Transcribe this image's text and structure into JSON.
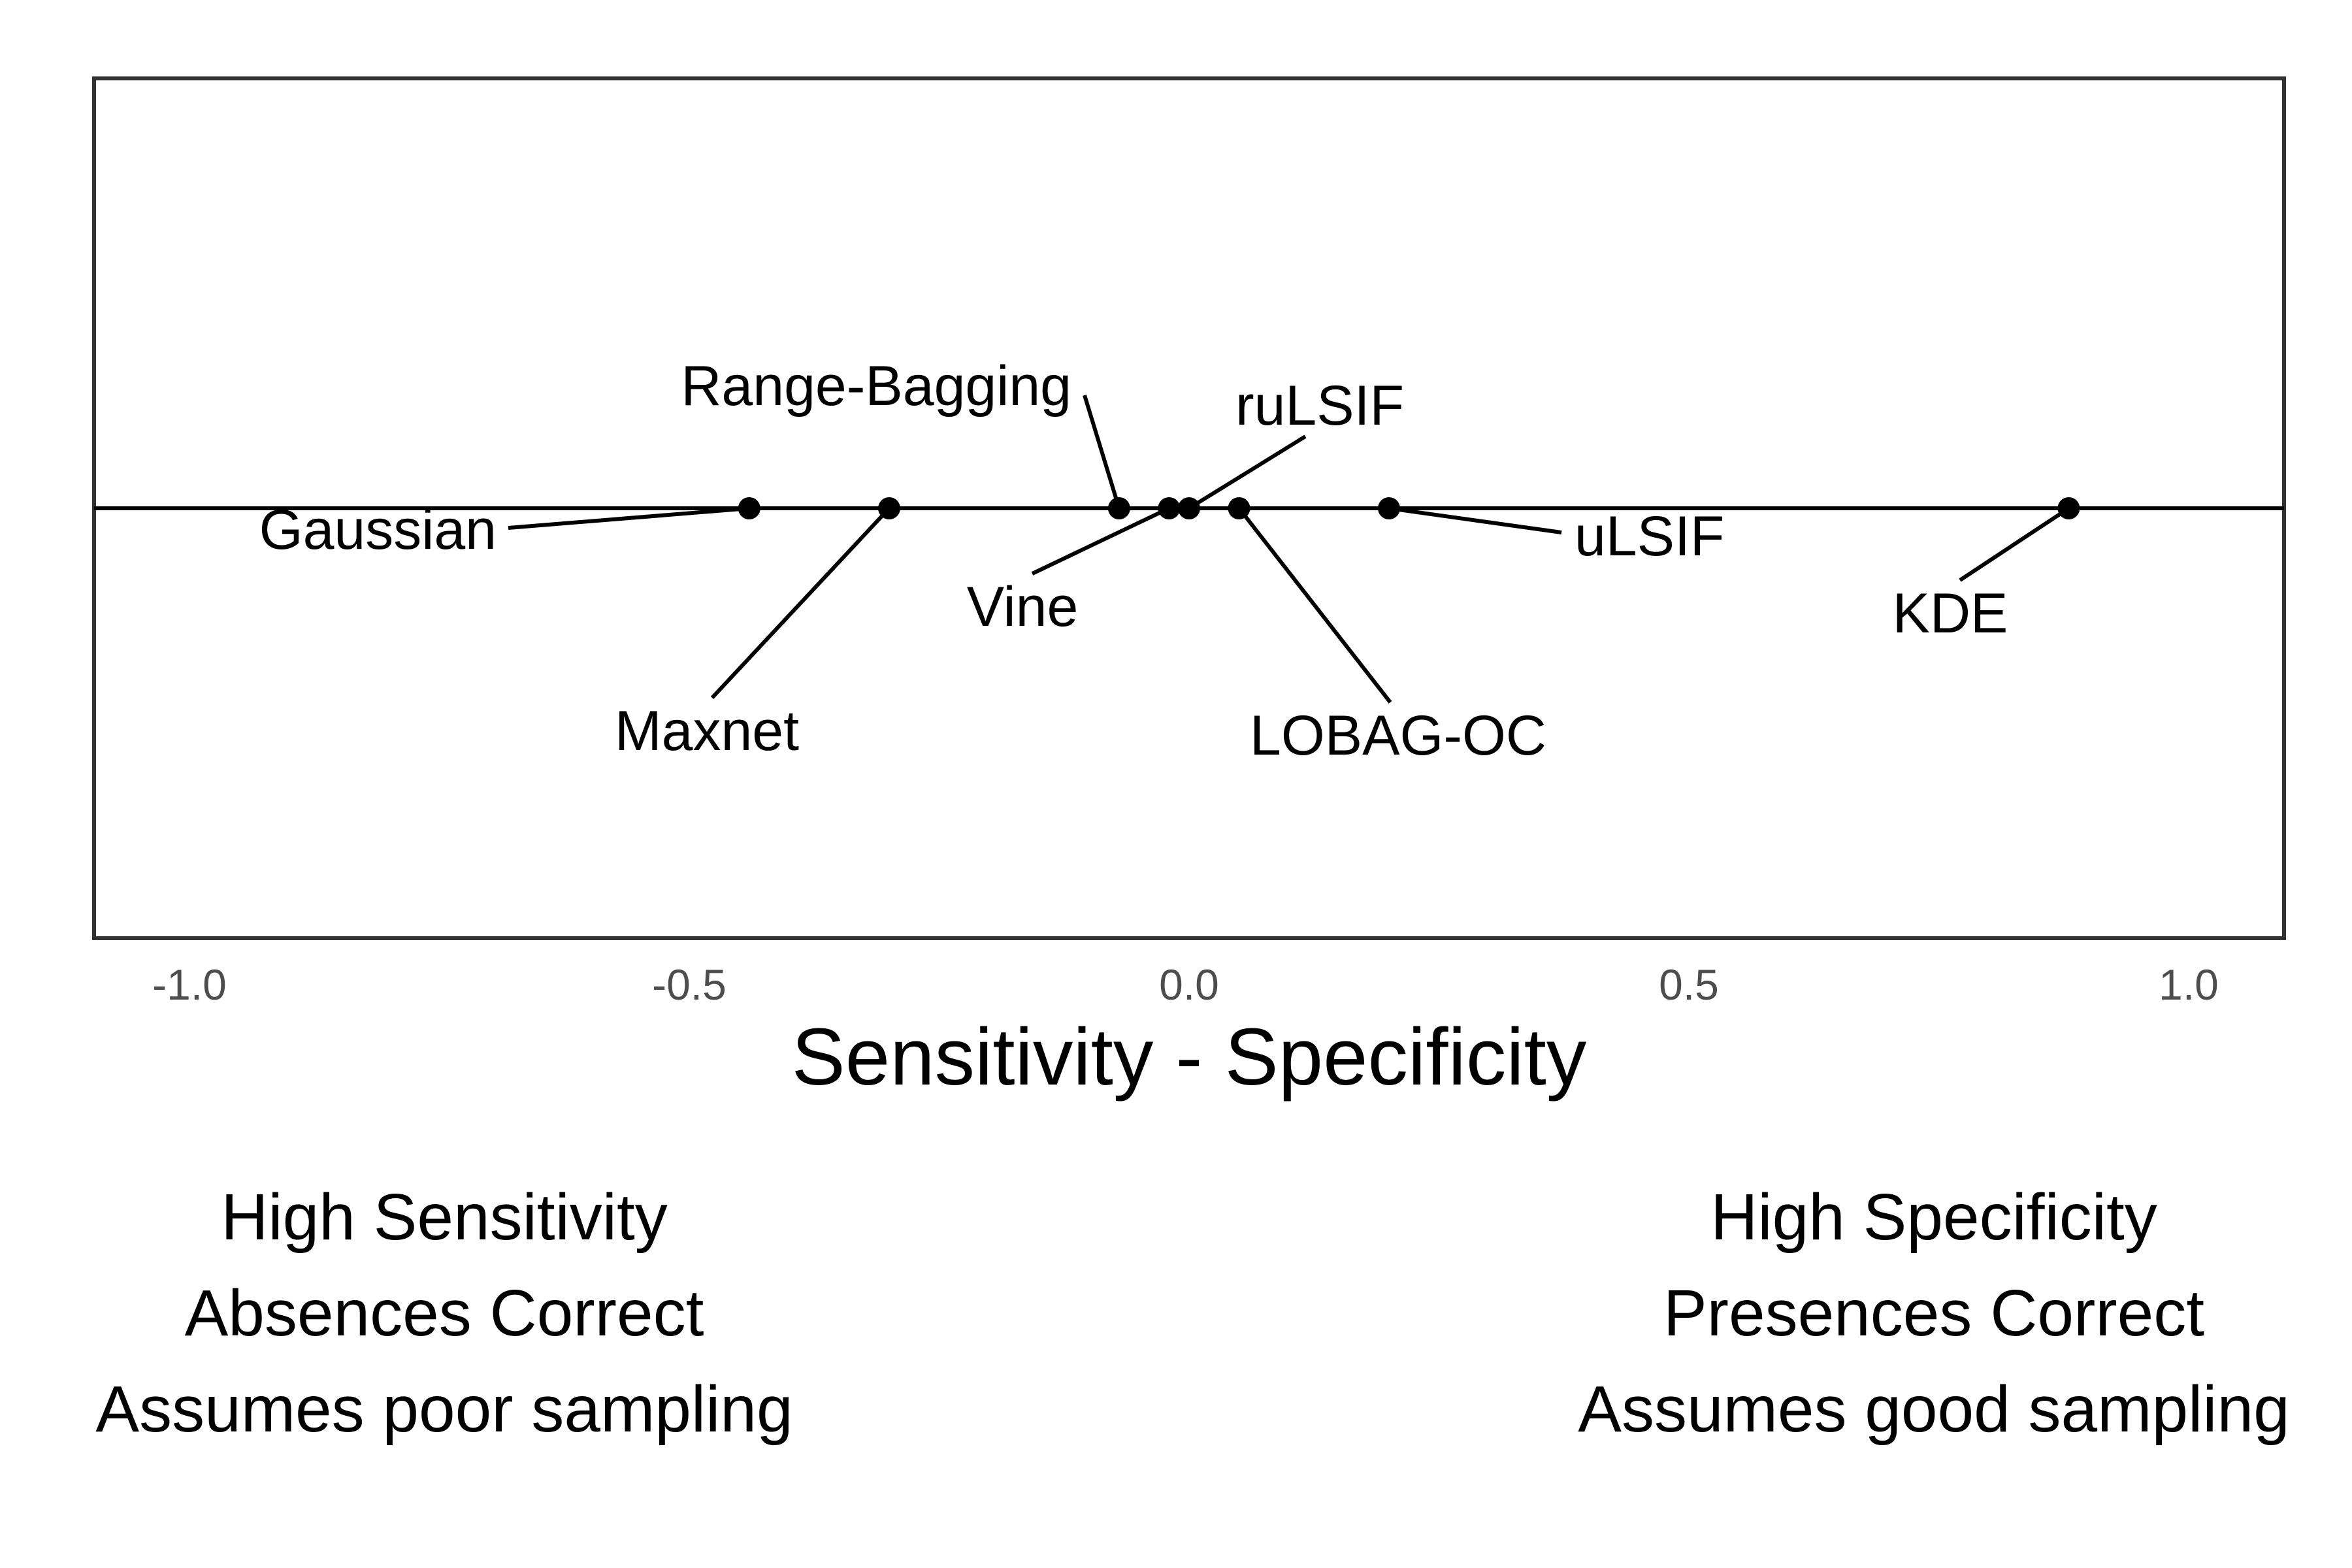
{
  "chart_data": {
    "type": "scatter",
    "title": "",
    "xlabel": "Sensitivity - Specificity",
    "ylabel": "",
    "xlim": [
      -1.1,
      1.1
    ],
    "x_ticks": [
      -1.0,
      -0.5,
      0.0,
      0.5,
      1.0
    ],
    "x_tick_labels": [
      "-1.0",
      "-0.5",
      "0.0",
      "0.5",
      "1.0"
    ],
    "grid": false,
    "legend": "none",
    "colors": {
      "point": "#000000",
      "frame": "#333333",
      "tick_text": "#4d4d4d"
    },
    "points": [
      {
        "label": "Gaussian",
        "x": -0.44
      },
      {
        "label": "Maxnet",
        "x": -0.3
      },
      {
        "label": "Range-Bagging",
        "x": -0.07
      },
      {
        "label": "Vine",
        "x": -0.02
      },
      {
        "label": "ruLSIF",
        "x": 0.0
      },
      {
        "label": "LOBAG-OC",
        "x": 0.05
      },
      {
        "label": "uLSIF",
        "x": 0.2
      },
      {
        "label": "KDE",
        "x": 0.88
      }
    ]
  },
  "footer": {
    "left": [
      "High Sensitivity",
      "Absences Correct",
      "Assumes poor sampling"
    ],
    "right": [
      "High Specificity",
      "Presences Correct",
      "Assumes good sampling"
    ]
  }
}
